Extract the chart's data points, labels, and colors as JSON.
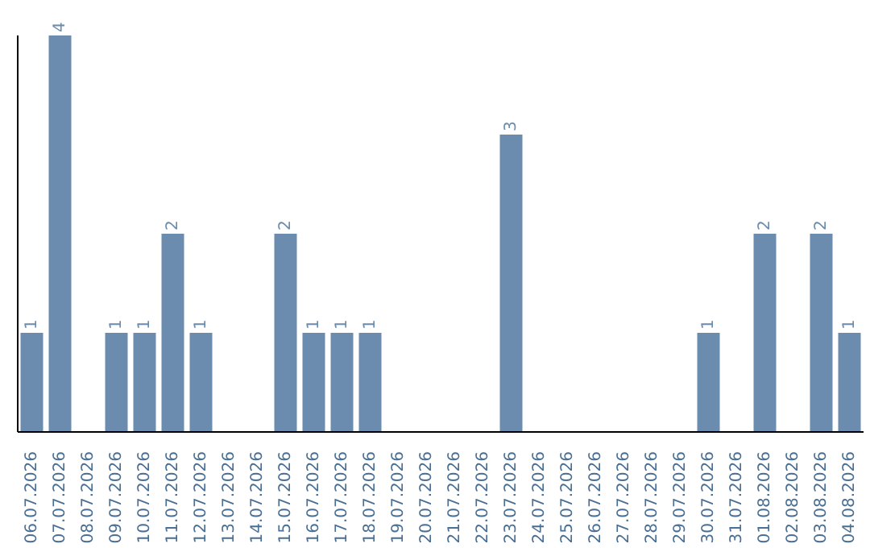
{
  "chart_data": {
    "type": "bar",
    "categories": [
      "06.07.2026",
      "07.07.2026",
      "08.07.2026",
      "09.07.2026",
      "10.07.2026",
      "11.07.2026",
      "12.07.2026",
      "13.07.2026",
      "14.07.2026",
      "15.07.2026",
      "16.07.2026",
      "17.07.2026",
      "18.07.2026",
      "19.07.2026",
      "20.07.2026",
      "21.07.2026",
      "22.07.2026",
      "23.07.2026",
      "24.07.2026",
      "25.07.2026",
      "26.07.2026",
      "27.07.2026",
      "28.07.2026",
      "29.07.2026",
      "30.07.2026",
      "31.07.2026",
      "01.08.2026",
      "02.08.2026",
      "03.08.2026",
      "04.08.2026"
    ],
    "values": [
      1,
      4,
      0,
      1,
      1,
      2,
      1,
      0,
      0,
      2,
      1,
      1,
      1,
      0,
      0,
      0,
      0,
      3,
      0,
      0,
      0,
      0,
      0,
      0,
      1,
      0,
      2,
      0,
      2,
      1
    ],
    "value_labels": [
      "1",
      "4",
      null,
      "1",
      "1",
      "2",
      "1",
      null,
      null,
      "2",
      "1",
      "1",
      "1",
      null,
      null,
      null,
      null,
      "3",
      null,
      null,
      null,
      null,
      null,
      null,
      "1",
      null,
      "2",
      null,
      "2",
      "1"
    ],
    "color": "#6b8cae",
    "grid": false,
    "legend": false
  }
}
